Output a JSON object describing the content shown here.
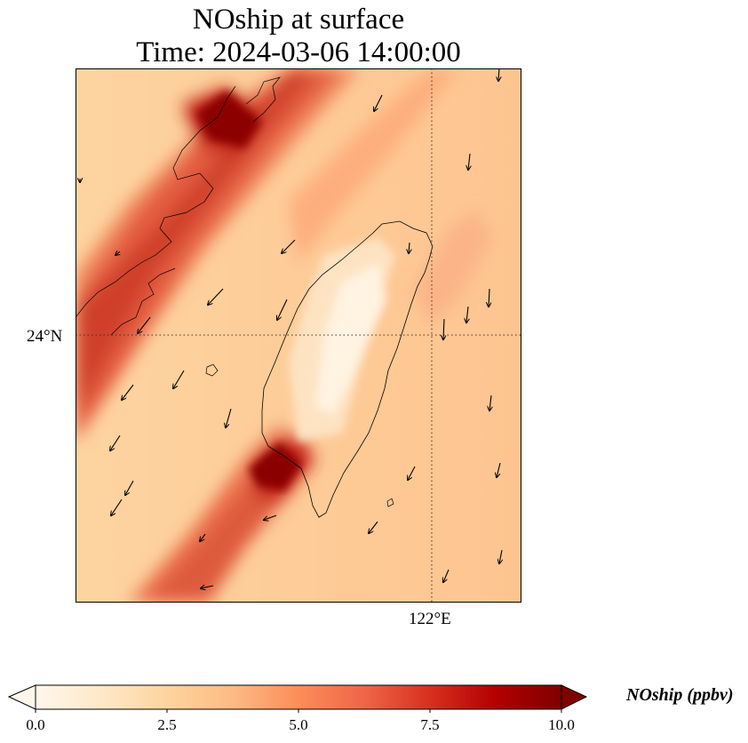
{
  "title": {
    "line1": "NOship at surface",
    "line2": "Time: 2024-03-06 14:00:00"
  },
  "map": {
    "lat_gridline_label": "24°N",
    "lon_gridline_label": "122°E",
    "features": [
      "Taiwan island coastline",
      "Fujian coastline",
      "wind vector arrows",
      "NOship concentration grid"
    ]
  },
  "colorbar": {
    "label": "NOship (ppbv)",
    "min": 0.0,
    "max": 10.0,
    "extend": "both",
    "colormap": "OrRd",
    "ticks": [
      "0.0",
      "2.5",
      "5.0",
      "7.5",
      "10.0"
    ],
    "colors": [
      "#fff7ec",
      "#fee8c8",
      "#fdd49e",
      "#fdbb84",
      "#fc8d59",
      "#ef6548",
      "#d7301f",
      "#b30000",
      "#7f0000"
    ]
  }
}
